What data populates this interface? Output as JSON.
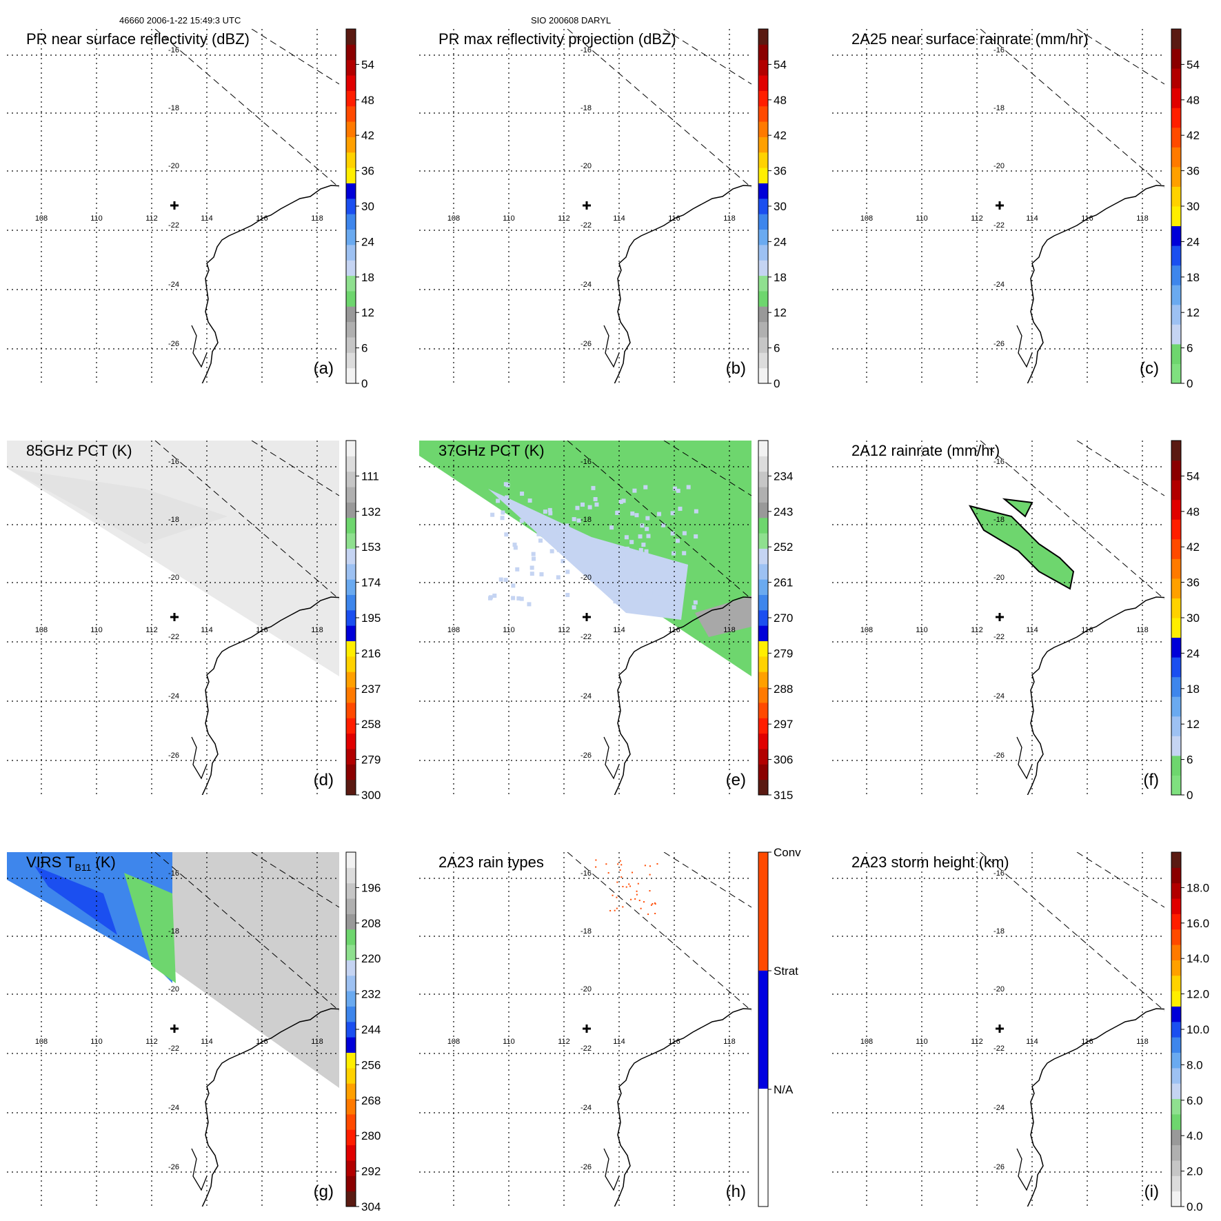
{
  "header": {
    "left": "46660 2006-1-22 15:49:3 UTC",
    "right": "SIO 200608 DARYL"
  },
  "colors": {
    "cb_dbz": [
      "#f2f2f2",
      "#dcdcdc",
      "#c6c6c6",
      "#b0b0b0",
      "#999999",
      "#6ed66e",
      "#8fe08f",
      "#c5d4f2",
      "#9dc1f2",
      "#6aaaf0",
      "#3e86ec",
      "#1b4ff0",
      "#0000d8",
      "#ffee00",
      "#ffd200",
      "#ffa000",
      "#ff7a00",
      "#ff4a00",
      "#ff1e00",
      "#e00000",
      "#b20000",
      "#8a0000",
      "#5a1a12"
    ],
    "cb_rain": [
      "#7fe07f",
      "#6ed66e",
      "#c5d4f2",
      "#9dc1f2",
      "#6aaaf0",
      "#3e86ec",
      "#1b4ff0",
      "#0000d8",
      "#ffee00",
      "#ffd200",
      "#ffa000",
      "#ff7a00",
      "#ff4a00",
      "#ff1e00",
      "#e00000",
      "#b20000",
      "#8a0000",
      "#5a1a12"
    ],
    "cb_pct": [
      "#5a1a12",
      "#8a0000",
      "#b20000",
      "#e00000",
      "#ff1e00",
      "#ff4a00",
      "#ff7a00",
      "#ffa000",
      "#ffd200",
      "#ffee00",
      "#0000d8",
      "#1b4ff0",
      "#3e86ec",
      "#6aaaf0",
      "#9dc1f2",
      "#c5d4f2",
      "#8fe08f",
      "#6ed66e",
      "#999999",
      "#b0b0b0",
      "#c6c6c6",
      "#dcdcdc",
      "#f2f2f2"
    ],
    "cb_height": [
      "#f2f2f2",
      "#dcdcdc",
      "#c6c6c6",
      "#b0b0b0",
      "#999999",
      "#6ed66e",
      "#8fe08f",
      "#c5d4f2",
      "#9dc1f2",
      "#6aaaf0",
      "#3e86ec",
      "#1b4ff0",
      "#0000d8",
      "#ffee00",
      "#ffd200",
      "#ffa000",
      "#ff7a00",
      "#ff4a00",
      "#ff1e00",
      "#e00000",
      "#b20000",
      "#8a0000",
      "#5a1a12"
    ],
    "cb_types": [
      "#ffffff",
      "#0000e0",
      "#ff4a00"
    ],
    "green": "#6ed66e",
    "lightblue": "#c5d4f2",
    "gray_bg": "#e6e6e6"
  },
  "map": {
    "lon_labels": [
      "108",
      "110",
      "112",
      "114",
      "116",
      "118"
    ],
    "lat_labels": [
      "-16",
      "-18",
      "-20",
      "-22",
      "-24",
      "-26"
    ]
  },
  "chart_data": [
    {
      "type": "heatmap",
      "panel": "a",
      "title": "PR near surface reflectivity (dBZ)",
      "colorbar_ticks": [
        "0",
        "6",
        "12",
        "18",
        "24",
        "30",
        "36",
        "42",
        "48",
        "54"
      ],
      "colorbar_range": [
        0,
        60
      ],
      "colorbar_key": "cb_dbz"
    },
    {
      "type": "heatmap",
      "panel": "b",
      "title": "PR max reflectivity projection (dBZ)",
      "colorbar_ticks": [
        "0",
        "6",
        "12",
        "18",
        "24",
        "30",
        "36",
        "42",
        "48",
        "54"
      ],
      "colorbar_range": [
        0,
        60
      ],
      "colorbar_key": "cb_dbz"
    },
    {
      "type": "heatmap",
      "panel": "c",
      "title": "2A25 near surface rainrate (mm/hr)",
      "colorbar_ticks": [
        "0",
        "6",
        "12",
        "18",
        "24",
        "30",
        "36",
        "42",
        "48",
        "54"
      ],
      "colorbar_range": [
        0,
        60
      ],
      "colorbar_key": "cb_rain"
    },
    {
      "type": "heatmap",
      "panel": "d",
      "title": "85GHz PCT (K)",
      "colorbar_ticks": [
        "300",
        "279",
        "258",
        "237",
        "216",
        "195",
        "174",
        "153",
        "132",
        "111"
      ],
      "colorbar_range": [
        300,
        90
      ],
      "colorbar_key": "cb_pct"
    },
    {
      "type": "heatmap",
      "panel": "e",
      "title": "37GHz PCT (K)",
      "colorbar_ticks": [
        "315",
        "306",
        "297",
        "288",
        "279",
        "270",
        "261",
        "252",
        "243",
        "234"
      ],
      "colorbar_range": [
        315,
        225
      ],
      "colorbar_key": "cb_pct"
    },
    {
      "type": "heatmap",
      "panel": "f",
      "title": "2A12 rainrate (mm/hr)",
      "colorbar_ticks": [
        "0",
        "6",
        "12",
        "18",
        "24",
        "30",
        "36",
        "42",
        "48",
        "54"
      ],
      "colorbar_range": [
        0,
        60
      ],
      "colorbar_key": "cb_rain"
    },
    {
      "type": "heatmap",
      "panel": "g",
      "title": "VIRS T",
      "title_sub": "B11",
      "title_suffix": " (K)",
      "colorbar_ticks": [
        "304",
        "292",
        "280",
        "268",
        "256",
        "244",
        "232",
        "220",
        "208",
        "196"
      ],
      "colorbar_range": [
        304,
        184
      ],
      "colorbar_key": "cb_pct"
    },
    {
      "type": "heatmap",
      "panel": "h",
      "title": "2A23 rain types",
      "colorbar_ticks": [
        "N/A",
        "Strat",
        "Conv"
      ],
      "colorbar_range": [
        0,
        3
      ],
      "colorbar_key": "cb_types"
    },
    {
      "type": "heatmap",
      "panel": "i",
      "title": "2A23 storm height (km)",
      "colorbar_ticks": [
        "0.0",
        "2.0",
        "4.0",
        "6.0",
        "8.0",
        "10.0",
        "12.0",
        "14.0",
        "16.0",
        "18.0"
      ],
      "colorbar_range": [
        0,
        20
      ],
      "colorbar_key": "cb_height"
    }
  ]
}
